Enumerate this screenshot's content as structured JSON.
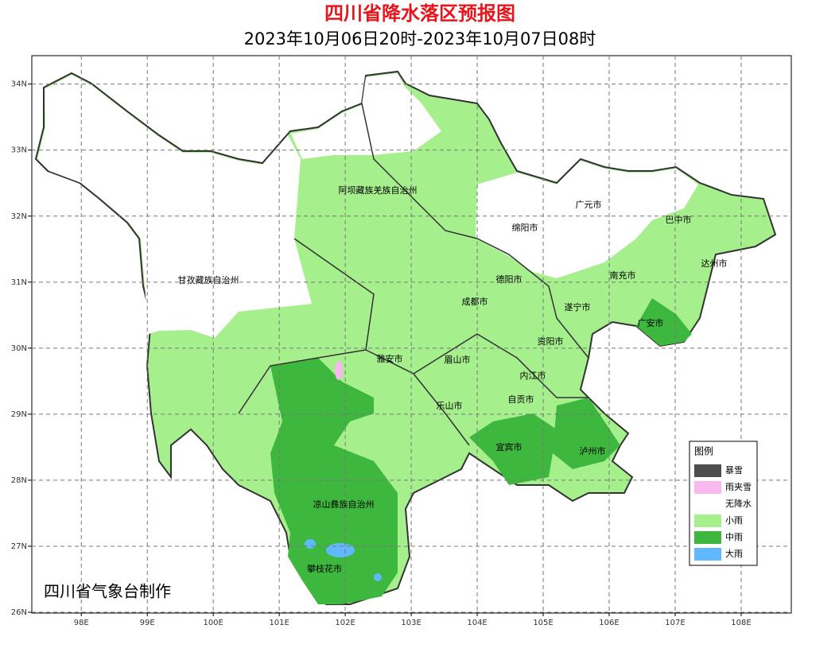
{
  "header": {
    "title": "四川省降水落区预报图",
    "subtitle": "2023年10月06日20时-2023年10月07日08时"
  },
  "map": {
    "xlim": [
      97.25,
      108.76
    ],
    "ylim": [
      26,
      34.43
    ],
    "grid": true,
    "xticks": [
      {
        "value": 98,
        "label": "98E"
      },
      {
        "value": 99,
        "label": "99E"
      },
      {
        "value": 100,
        "label": "100E"
      },
      {
        "value": 101,
        "label": "101E"
      },
      {
        "value": 102,
        "label": "102E"
      },
      {
        "value": 103,
        "label": "103E"
      },
      {
        "value": 104,
        "label": "104E"
      },
      {
        "value": 105,
        "label": "105E"
      },
      {
        "value": 106,
        "label": "106E"
      },
      {
        "value": 107,
        "label": "107E"
      },
      {
        "value": 108,
        "label": "108E"
      }
    ],
    "yticks": [
      {
        "value": 26,
        "label": "26N"
      },
      {
        "value": 27,
        "label": "27N"
      },
      {
        "value": 28,
        "label": "28N"
      },
      {
        "value": 29,
        "label": "29N"
      },
      {
        "value": 30,
        "label": "30N"
      },
      {
        "value": 31,
        "label": "31N"
      },
      {
        "value": 32,
        "label": "32N"
      },
      {
        "value": 33,
        "label": "33N"
      },
      {
        "value": 34,
        "label": "34N"
      }
    ],
    "labels": [
      "阿坝藏族羌族自治州",
      "甘孜藏族自治州",
      "广元市",
      "巴中市",
      "绵阳市",
      "达州市",
      "南充市",
      "德阳市",
      "成都市",
      "遂宁市",
      "广安市",
      "资阳市",
      "雅安市",
      "眉山市",
      "内江市",
      "自贡市",
      "乐山市",
      "宜宾市",
      "泸州市",
      "凉山彝族自治州",
      "攀枝花市"
    ],
    "legend": {
      "title": "图例",
      "items": [
        {
          "label": "暴雪",
          "color": "#4d4d4d"
        },
        {
          "label": "雨夹雪",
          "color": "#f9b9ef"
        },
        {
          "label": "无降水",
          "color": "#ffffff"
        },
        {
          "label": "小雨",
          "color": "#a6ef8d"
        },
        {
          "label": "中雨",
          "color": "#3db73d"
        },
        {
          "label": "大雨",
          "color": "#62b8ff"
        }
      ]
    },
    "credit": "四川省气象台制作"
  }
}
